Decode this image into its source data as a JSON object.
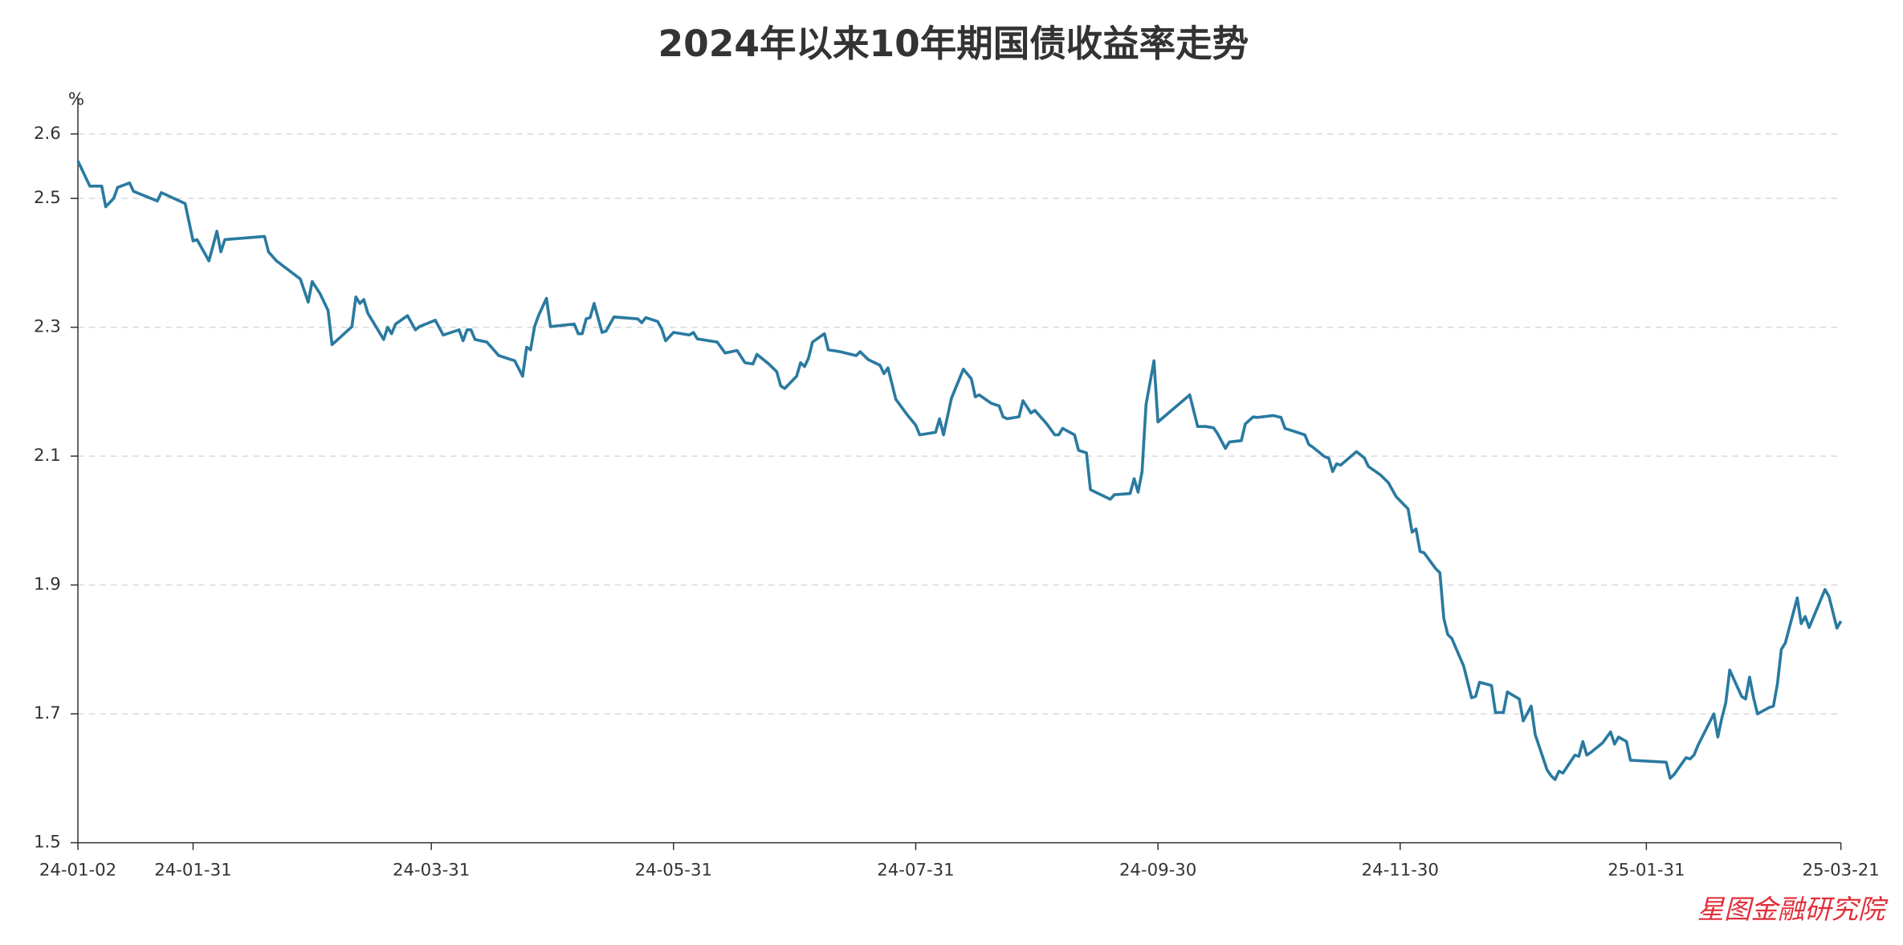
{
  "chart_data": {
    "type": "line",
    "title": "2024年以来10年期国债收益率走势",
    "y_label": "%",
    "watermark": "星图金融研究院",
    "color": "#2a7aa0",
    "grid": true,
    "ylim": [
      1.5,
      2.6
    ],
    "yticks": [
      1.5,
      1.7,
      1.9,
      2.1,
      2.3,
      2.5,
      2.6
    ],
    "xlim": [
      "24-01-02",
      "25-03-21"
    ],
    "xticks": [
      "24-01-02",
      "24-01-31",
      "24-03-31",
      "24-05-31",
      "24-07-31",
      "24-09-30",
      "24-11-30",
      "25-01-31",
      "25-03-21"
    ],
    "x": [
      "24-01-02",
      "24-01-05",
      "24-01-08",
      "24-01-09",
      "24-01-11",
      "24-01-12",
      "24-01-15",
      "24-01-16",
      "24-01-22",
      "24-01-23",
      "24-01-29",
      "24-01-31",
      "24-02-01",
      "24-02-04",
      "24-02-06",
      "24-02-07",
      "24-02-08",
      "24-02-18",
      "24-02-19",
      "24-02-21",
      "24-02-27",
      "24-02-29",
      "24-03-01",
      "24-03-03",
      "24-03-05",
      "24-03-06",
      "24-03-08",
      "24-03-11",
      "24-03-12",
      "24-03-13",
      "24-03-14",
      "24-03-15",
      "24-03-19",
      "24-03-20",
      "24-03-21",
      "24-03-22",
      "24-03-25",
      "24-03-27",
      "24-03-28",
      "24-04-01",
      "24-04-03",
      "24-04-07",
      "24-04-08",
      "24-04-09",
      "24-04-10",
      "24-04-11",
      "24-04-14",
      "24-04-17",
      "24-04-21",
      "24-04-23",
      "24-04-24",
      "24-04-25",
      "24-04-26",
      "24-04-27",
      "24-04-29",
      "24-04-30",
      "24-05-06",
      "24-05-07",
      "24-05-08",
      "24-05-09",
      "24-05-10",
      "24-05-11",
      "24-05-13",
      "24-05-14",
      "24-05-16",
      "24-05-22",
      "24-05-23",
      "24-05-24",
      "24-05-27",
      "24-05-28",
      "24-05-29",
      "24-05-31",
      "24-06-04",
      "24-06-05",
      "24-06-06",
      "24-06-11",
      "24-06-13",
      "24-06-16",
      "24-06-18",
      "24-06-20",
      "24-06-21",
      "24-06-24",
      "24-06-26",
      "24-06-27",
      "24-06-28",
      "24-07-01",
      "24-07-02",
      "24-07-03",
      "24-07-04",
      "24-07-05",
      "24-07-08",
      "24-07-09",
      "24-07-12",
      "24-07-16",
      "24-07-17",
      "24-07-19",
      "24-07-22",
      "24-07-23",
      "24-07-24",
      "24-07-26",
      "24-07-29",
      "24-07-31",
      "24-08-01",
      "24-08-05",
      "24-08-06",
      "24-08-07",
      "24-08-09",
      "24-08-12",
      "24-08-14",
      "24-08-15",
      "24-08-16",
      "24-08-19",
      "24-08-21",
      "24-08-22",
      "24-08-23",
      "24-08-26",
      "24-08-27",
      "24-08-29",
      "24-08-30",
      "24-09-02",
      "24-09-04",
      "24-09-05",
      "24-09-06",
      "24-09-09",
      "24-09-10",
      "24-09-12",
      "24-09-13",
      "24-09-18",
      "24-09-19",
      "24-09-23",
      "24-09-24",
      "24-09-25",
      "24-09-26",
      "24-09-27",
      "24-09-29",
      "24-09-30",
      "24-10-08",
      "24-10-10",
      "24-10-12",
      "24-10-14",
      "24-10-15",
      "24-10-17",
      "24-10-18",
      "24-10-21",
      "24-10-22",
      "24-10-24",
      "24-10-25",
      "24-10-29",
      "24-10-31",
      "24-11-01",
      "24-11-04",
      "24-11-06",
      "24-11-07",
      "24-11-08",
      "24-11-11",
      "24-11-12",
      "24-11-13",
      "24-11-14",
      "24-11-15",
      "24-11-19",
      "24-11-21",
      "24-11-22",
      "24-11-25",
      "24-11-27",
      "24-11-29",
      "24-12-02",
      "24-12-03",
      "24-12-04",
      "24-12-05",
      "24-12-06",
      "24-12-09",
      "24-12-10",
      "24-12-11",
      "24-12-12",
      "24-12-13",
      "24-12-16",
      "24-12-18",
      "24-12-19",
      "24-12-20",
      "24-12-23",
      "24-12-24",
      "24-12-26",
      "24-12-27",
      "24-12-30",
      "24-12-31",
      "25-01-02",
      "25-01-03",
      "25-01-06",
      "25-01-07",
      "25-01-08",
      "25-01-09",
      "25-01-10",
      "25-01-13",
      "25-01-14",
      "25-01-15",
      "25-01-16",
      "25-01-17",
      "25-01-20",
      "25-01-22",
      "25-01-23",
      "25-01-24",
      "25-01-26",
      "25-01-27",
      "25-02-05",
      "25-02-06",
      "25-02-07",
      "25-02-10",
      "25-02-11",
      "25-02-12",
      "25-02-13",
      "25-02-17",
      "25-02-18",
      "25-02-19",
      "25-02-20",
      "25-02-21",
      "25-02-24",
      "25-02-25",
      "25-02-26",
      "25-02-27",
      "25-02-28",
      "25-03-03",
      "25-03-04",
      "25-03-05",
      "25-03-06",
      "25-03-07",
      "25-03-10",
      "25-03-11",
      "25-03-12",
      "25-03-13",
      "25-03-17",
      "25-03-18",
      "25-03-20",
      "25-03-21"
    ],
    "values": [
      2.558,
      2.519,
      2.519,
      2.487,
      2.5,
      2.517,
      2.524,
      2.511,
      2.496,
      2.509,
      2.492,
      2.434,
      2.436,
      2.403,
      2.449,
      2.417,
      2.436,
      2.441,
      2.417,
      2.403,
      2.375,
      2.339,
      2.371,
      2.352,
      2.326,
      2.273,
      2.284,
      2.301,
      2.347,
      2.337,
      2.343,
      2.322,
      2.281,
      2.3,
      2.29,
      2.305,
      2.318,
      2.296,
      2.301,
      2.311,
      2.288,
      2.296,
      2.279,
      2.296,
      2.296,
      2.281,
      2.277,
      2.256,
      2.248,
      2.224,
      2.269,
      2.265,
      2.301,
      2.318,
      2.345,
      2.301,
      2.305,
      2.29,
      2.29,
      2.313,
      2.315,
      2.337,
      2.292,
      2.294,
      2.316,
      2.313,
      2.307,
      2.315,
      2.309,
      2.298,
      2.279,
      2.292,
      2.288,
      2.292,
      2.282,
      2.277,
      2.26,
      2.264,
      2.245,
      2.243,
      2.258,
      2.243,
      2.231,
      2.209,
      2.205,
      2.224,
      2.245,
      2.239,
      2.252,
      2.277,
      2.29,
      2.265,
      2.262,
      2.256,
      2.262,
      2.25,
      2.241,
      2.228,
      2.237,
      2.188,
      2.163,
      2.148,
      2.133,
      2.137,
      2.158,
      2.133,
      2.19,
      2.235,
      2.22,
      2.192,
      2.195,
      2.182,
      2.178,
      2.161,
      2.158,
      2.161,
      2.186,
      2.167,
      2.171,
      2.15,
      2.133,
      2.133,
      2.143,
      2.133,
      2.109,
      2.105,
      2.048,
      2.033,
      2.04,
      2.042,
      2.065,
      2.044,
      2.076,
      2.18,
      2.248,
      2.153,
      2.195,
      2.146,
      2.146,
      2.144,
      2.135,
      2.112,
      2.122,
      2.124,
      2.15,
      2.161,
      2.16,
      2.163,
      2.16,
      2.143,
      2.137,
      2.133,
      2.118,
      2.114,
      2.099,
      2.097,
      2.076,
      2.088,
      2.086,
      2.107,
      2.097,
      2.084,
      2.071,
      2.059,
      2.037,
      2.018,
      1.982,
      1.987,
      1.952,
      1.95,
      1.925,
      1.919,
      1.848,
      1.823,
      1.817,
      1.774,
      1.725,
      1.727,
      1.749,
      1.744,
      1.702,
      1.702,
      1.734,
      1.723,
      1.689,
      1.712,
      1.668,
      1.613,
      1.604,
      1.598,
      1.611,
      1.608,
      1.636,
      1.634,
      1.657,
      1.636,
      1.64,
      1.655,
      1.672,
      1.653,
      1.664,
      1.657,
      1.628,
      1.625,
      1.6,
      1.606,
      1.632,
      1.63,
      1.636,
      1.651,
      1.7,
      1.664,
      1.693,
      1.717,
      1.768,
      1.727,
      1.723,
      1.757,
      1.725,
      1.7,
      1.71,
      1.712,
      1.746,
      1.8,
      1.81,
      1.88,
      1.84,
      1.851,
      1.834,
      1.893,
      1.882,
      1.833,
      1.844
    ]
  }
}
